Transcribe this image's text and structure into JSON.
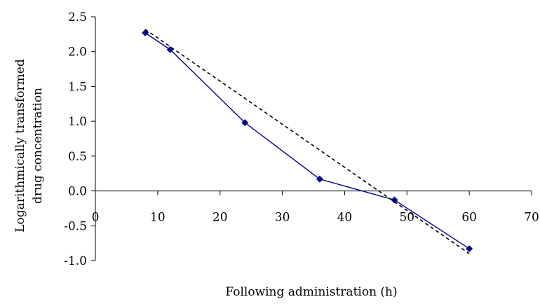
{
  "chart_data": {
    "type": "line",
    "title": "",
    "xlabel": "Following administration (h)",
    "ylabel_lines": [
      "Logarithmically transformed",
      "drug concentration"
    ],
    "xlim": [
      0,
      70
    ],
    "ylim": [
      -1.0,
      2.5
    ],
    "x_ticks": [
      0,
      10,
      20,
      30,
      40,
      50,
      60,
      70
    ],
    "x_tick_labels": [
      "0",
      "10",
      "20",
      "30",
      "40",
      "50",
      "60",
      "70"
    ],
    "y_ticks": [
      2.5,
      2.0,
      1.5,
      1.0,
      0.5,
      0.0,
      -0.5,
      -1.0
    ],
    "y_tick_labels": [
      "2.5",
      "2.0",
      "1.5",
      "1.0",
      "0.5",
      "0.0",
      "-0.5",
      "-1.0"
    ],
    "grid": false,
    "legend": "none",
    "series": [
      {
        "style": "solid-line-diamond-markers",
        "color": "#00008b",
        "x": [
          8,
          12,
          24,
          36,
          48,
          60
        ],
        "y": [
          2.27,
          2.03,
          0.98,
          0.17,
          -0.13,
          -0.83
        ]
      },
      {
        "style": "dashed-trendline",
        "color": "#000000",
        "x": [
          8,
          60
        ],
        "y": [
          2.32,
          -0.9
        ]
      }
    ]
  }
}
